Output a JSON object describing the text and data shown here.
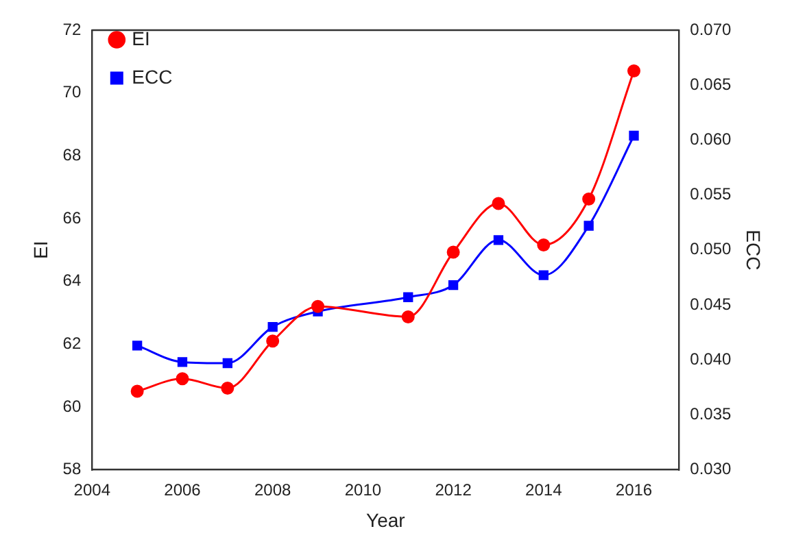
{
  "chart_data": {
    "type": "line",
    "xlabel": "Year",
    "ylabel": "EI",
    "y2label": "ECC",
    "xlim": [
      2004,
      2017
    ],
    "xticks": [
      2004,
      2006,
      2008,
      2010,
      2012,
      2014,
      2016
    ],
    "ylim": [
      58,
      72
    ],
    "yticks": [
      58,
      60,
      62,
      64,
      66,
      68,
      70,
      72
    ],
    "y2lim": [
      0.03,
      0.07
    ],
    "y2ticks": [
      {
        "value": 0.03,
        "label": "0.030"
      },
      {
        "value": 0.035,
        "label": "0.035"
      },
      {
        "value": 0.04,
        "label": "0.040"
      },
      {
        "value": 0.045,
        "label": "0.045"
      },
      {
        "value": 0.05,
        "label": "0.050"
      },
      {
        "value": 0.055,
        "label": "0.055"
      },
      {
        "value": 0.06,
        "label": "0.060"
      },
      {
        "value": 0.065,
        "label": "0.065"
      },
      {
        "value": 0.07,
        "label": "0.070"
      }
    ],
    "grid": false,
    "legend": "top left",
    "x": [
      2005,
      2006,
      2007,
      2008,
      2009,
      2011,
      2012,
      2013,
      2014,
      2015,
      2016
    ],
    "series": [
      {
        "name": "EI",
        "color": "#ff0000",
        "marker": "circle",
        "values": [
          60.5,
          60.9,
          60.6,
          62.1,
          63.2,
          62.87,
          64.93,
          66.48,
          65.16,
          66.62,
          70.7
        ]
      },
      {
        "name": "ECC",
        "color": "#0000ff",
        "marker": "square",
        "axis": "y2",
        "values": [
          0.0413,
          0.0398,
          0.0397,
          0.043,
          0.0444,
          0.0457,
          0.0468,
          0.0509,
          0.0477,
          0.0522,
          0.0604
        ]
      }
    ]
  }
}
